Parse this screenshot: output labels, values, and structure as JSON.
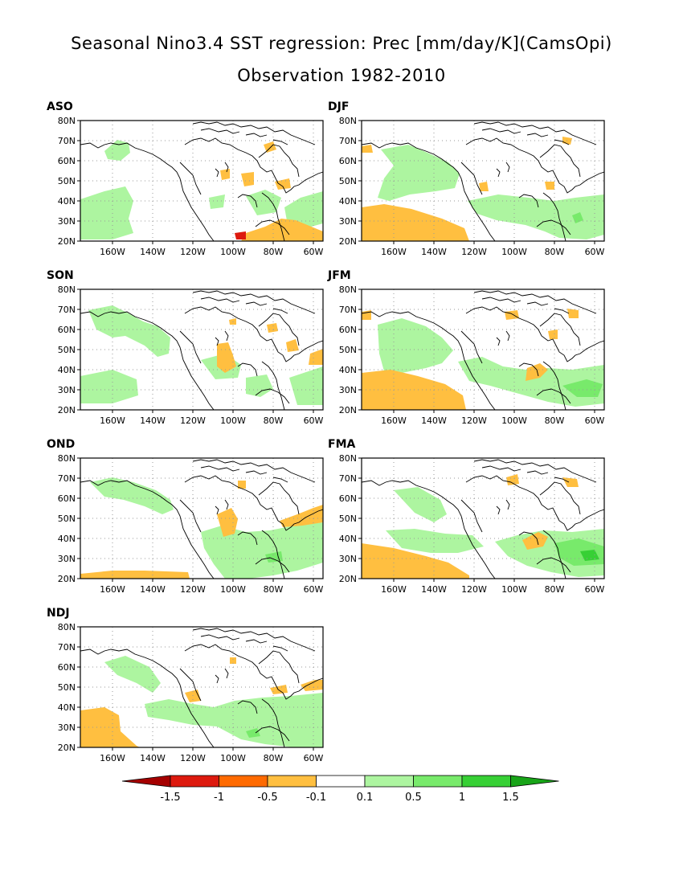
{
  "title_line1": "Seasonal Nino3.4 SST regression: Prec [mm/day/K](CamsOpi)",
  "title_line2": "Observation 1982-2010",
  "colors": {
    "neg4": "#a50000",
    "neg3": "#dd1a0e",
    "neg2": "#ff6a00",
    "neg1": "#ffbf40",
    "zero": "#ffffff",
    "pos1": "#adf5a0",
    "pos2": "#78ea6b",
    "pos3": "#37d035",
    "pos4": "#18a418",
    "coast": "#000000",
    "grid": "#999999"
  },
  "lat_ticks": [
    "80N",
    "70N",
    "60N",
    "50N",
    "40N",
    "30N",
    "20N"
  ],
  "lon_ticks": [
    "160W",
    "140W",
    "120W",
    "100W",
    "80W",
    "60W"
  ],
  "colorbar_labels": [
    "-1.5",
    "-1",
    "-0.5",
    "-0.1",
    "0.1",
    "0.5",
    "1",
    "1.5"
  ],
  "panels": [
    {
      "label": "ASO"
    },
    {
      "label": "DJF"
    },
    {
      "label": "SON"
    },
    {
      "label": "JFM"
    },
    {
      "label": "OND"
    },
    {
      "label": "FMA"
    },
    {
      "label": "NDJ"
    }
  ]
}
